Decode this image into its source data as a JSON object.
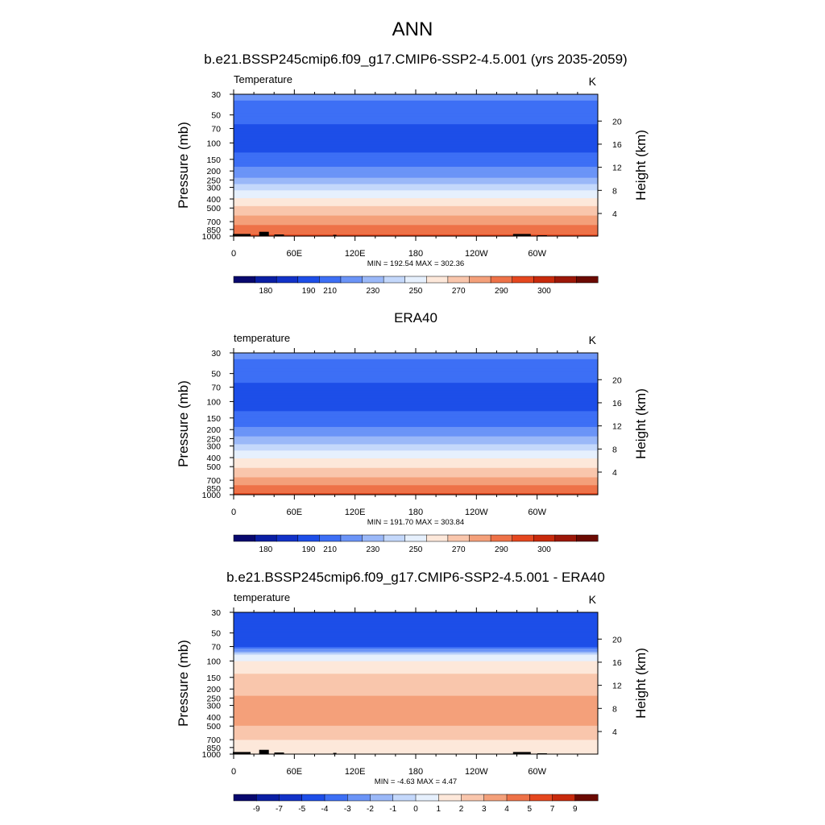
{
  "page": {
    "title": "ANN"
  },
  "chart_data": [
    {
      "type": "heatmap",
      "title": "b.e21.BSSP245cmip6.f09_g17.CMIP6-SSP2-4.5.001 (yrs 2035-2059)",
      "variable_label": "Temperature",
      "units": "K",
      "xlabel": "",
      "ylabel": "Pressure (mb)",
      "ylabel_right": "Height (km)",
      "x_ticks": [
        "0",
        "60E",
        "120E",
        "180",
        "120W",
        "60W"
      ],
      "y_ticks": [
        "30",
        "50",
        "70",
        "100",
        "150",
        "200",
        "250",
        "300",
        "400",
        "500",
        "700",
        "850",
        "1000"
      ],
      "right_ticks": [
        "20",
        "16",
        "12",
        "8",
        "4"
      ],
      "stats": "MIN = 192.54  MAX = 302.36",
      "min": 192.54,
      "max": 302.36,
      "colorbar_labels": [
        "180",
        "190",
        "210",
        "230",
        "250",
        "270",
        "290",
        "300"
      ],
      "profile": [
        {
          "p": 30,
          "v": 213
        },
        {
          "p": 40,
          "v": 208
        },
        {
          "p": 50,
          "v": 204
        },
        {
          "p": 70,
          "v": 198
        },
        {
          "p": 100,
          "v": 196
        },
        {
          "p": 120,
          "v": 199
        },
        {
          "p": 150,
          "v": 205
        },
        {
          "p": 200,
          "v": 213
        },
        {
          "p": 250,
          "v": 223
        },
        {
          "p": 300,
          "v": 235
        },
        {
          "p": 350,
          "v": 245
        },
        {
          "p": 400,
          "v": 252
        },
        {
          "p": 500,
          "v": 262
        },
        {
          "p": 600,
          "v": 270
        },
        {
          "p": 700,
          "v": 276
        },
        {
          "p": 800,
          "v": 282
        },
        {
          "p": 850,
          "v": 285
        },
        {
          "p": 925,
          "v": 289
        },
        {
          "p": 1000,
          "v": 292
        }
      ],
      "topography": [
        {
          "lon": 8,
          "p": 950
        },
        {
          "lon": 30,
          "p": 900
        },
        {
          "lon": 45,
          "p": 960
        },
        {
          "lon": 100,
          "p": 970
        },
        {
          "lon": 285,
          "p": 950
        },
        {
          "lon": 305,
          "p": 980
        }
      ]
    },
    {
      "type": "heatmap",
      "title": "ERA40",
      "variable_label": "temperature",
      "units": "K",
      "xlabel": "",
      "ylabel": "Pressure (mb)",
      "ylabel_right": "Height (km)",
      "x_ticks": [
        "0",
        "60E",
        "120E",
        "180",
        "120W",
        "60W"
      ],
      "y_ticks": [
        "30",
        "50",
        "70",
        "100",
        "150",
        "200",
        "250",
        "300",
        "400",
        "500",
        "700",
        "850",
        "1000"
      ],
      "right_ticks": [
        "20",
        "16",
        "12",
        "8",
        "4"
      ],
      "stats": "MIN = 191.70  MAX = 303.84",
      "min": 191.7,
      "max": 303.84,
      "colorbar_labels": [
        "180",
        "190",
        "210",
        "230",
        "250",
        "270",
        "290",
        "300"
      ],
      "profile": [
        {
          "p": 30,
          "v": 213
        },
        {
          "p": 40,
          "v": 208
        },
        {
          "p": 50,
          "v": 204
        },
        {
          "p": 70,
          "v": 198
        },
        {
          "p": 100,
          "v": 195
        },
        {
          "p": 120,
          "v": 198
        },
        {
          "p": 150,
          "v": 204
        },
        {
          "p": 200,
          "v": 212
        },
        {
          "p": 250,
          "v": 222
        },
        {
          "p": 300,
          "v": 233
        },
        {
          "p": 350,
          "v": 242
        },
        {
          "p": 400,
          "v": 249
        },
        {
          "p": 500,
          "v": 259
        },
        {
          "p": 600,
          "v": 267
        },
        {
          "p": 700,
          "v": 274
        },
        {
          "p": 800,
          "v": 280
        },
        {
          "p": 850,
          "v": 283
        },
        {
          "p": 925,
          "v": 287
        },
        {
          "p": 1000,
          "v": 291
        }
      ],
      "topography": []
    },
    {
      "type": "heatmap",
      "title": "b.e21.BSSP245cmip6.f09_g17.CMIP6-SSP2-4.5.001 - ERA40",
      "variable_label": "temperature",
      "units": "K",
      "xlabel": "",
      "ylabel": "Pressure (mb)",
      "ylabel_right": "Height (km)",
      "x_ticks": [
        "0",
        "60E",
        "120E",
        "180",
        "120W",
        "60W"
      ],
      "y_ticks": [
        "30",
        "50",
        "70",
        "100",
        "150",
        "200",
        "250",
        "300",
        "400",
        "500",
        "700",
        "850",
        "1000"
      ],
      "right_ticks": [
        "20",
        "16",
        "12",
        "8",
        "4"
      ],
      "stats": "MIN =  -4.63  MAX =   4.47",
      "min": -4.63,
      "max": 4.47,
      "colorbar_labels": [
        "-9",
        "-7",
        "-5",
        "-4",
        "-3",
        "-2",
        "-1",
        "0",
        "1",
        "2",
        "3",
        "4",
        "5",
        "7",
        "9"
      ],
      "profile": [
        {
          "p": 30,
          "v": -4.5
        },
        {
          "p": 50,
          "v": -4.5
        },
        {
          "p": 70,
          "v": -4.2
        },
        {
          "p": 80,
          "v": -1.5
        },
        {
          "p": 90,
          "v": 0.5
        },
        {
          "p": 110,
          "v": 1.5
        },
        {
          "p": 150,
          "v": 2.2
        },
        {
          "p": 200,
          "v": 2.6
        },
        {
          "p": 250,
          "v": 3.2
        },
        {
          "p": 300,
          "v": 3.4
        },
        {
          "p": 400,
          "v": 3.3
        },
        {
          "p": 500,
          "v": 3.0
        },
        {
          "p": 600,
          "v": 2.4
        },
        {
          "p": 700,
          "v": 2.0
        },
        {
          "p": 800,
          "v": 1.5
        },
        {
          "p": 900,
          "v": 1.2
        },
        {
          "p": 1000,
          "v": 1.0
        }
      ],
      "topography": [
        {
          "lon": 8,
          "p": 950
        },
        {
          "lon": 30,
          "p": 900
        },
        {
          "lon": 45,
          "p": 960
        },
        {
          "lon": 100,
          "p": 970
        },
        {
          "lon": 285,
          "p": 950
        },
        {
          "lon": 305,
          "p": 980
        }
      ]
    }
  ],
  "colors": {
    "temperature_palette": [
      "#08086e",
      "#0a1fa4",
      "#1232c8",
      "#1d4ee8",
      "#3d6ff5",
      "#6b94f7",
      "#9ab8f8",
      "#c4d8fb",
      "#e6f0fd",
      "#fde8da",
      "#f9c6ac",
      "#f4a07a",
      "#ee7248",
      "#e5471f",
      "#c82a0c",
      "#9c1708",
      "#6b0a02"
    ],
    "difference_palette": [
      "#08086e",
      "#0a1fa4",
      "#1232c8",
      "#1d4ee8",
      "#3d6ff5",
      "#6b94f7",
      "#9ab8f8",
      "#c4d8fb",
      "#e6f0fd",
      "#fde8da",
      "#f9c6ac",
      "#f4a07a",
      "#ee7248",
      "#e5471f",
      "#c82a0c",
      "#6b0a02"
    ],
    "topography": "#000000"
  }
}
